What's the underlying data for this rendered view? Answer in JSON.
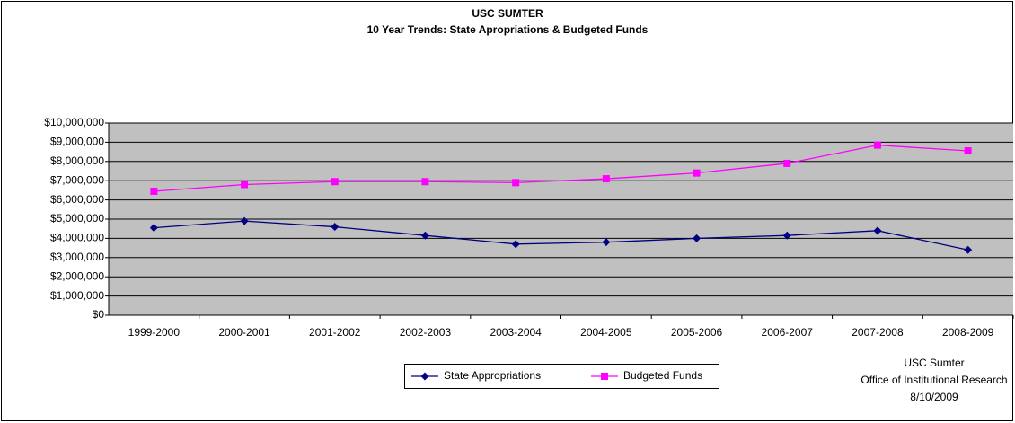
{
  "chart_data": {
    "type": "line",
    "title": "USC SUMTER",
    "subtitle": "10 Year Trends: State Apropriations & Budgeted Funds",
    "categories": [
      "1999-2000",
      "2000-2001",
      "2001-2002",
      "2002-2003",
      "2003-2004",
      "2004-2005",
      "2005-2006",
      "2006-2007",
      "2007-2008",
      "2008-2009"
    ],
    "series": [
      {
        "name": "State Appropriations",
        "color": "#000080",
        "marker": "diamond",
        "values": [
          4550000,
          4900000,
          4600000,
          4150000,
          3700000,
          3800000,
          4000000,
          4150000,
          4400000,
          3400000
        ]
      },
      {
        "name": "Budgeted Funds",
        "color": "#ff00ff",
        "marker": "square",
        "values": [
          6450000,
          6800000,
          6950000,
          6950000,
          6900000,
          7100000,
          7400000,
          7900000,
          8850000,
          8550000
        ]
      }
    ],
    "ylim": [
      0,
      10000000
    ],
    "yticks": [
      {
        "value": 0,
        "label": "$0"
      },
      {
        "value": 1000000,
        "label": "$1,000,000"
      },
      {
        "value": 2000000,
        "label": "$2,000,000"
      },
      {
        "value": 3000000,
        "label": "$3,000,000"
      },
      {
        "value": 4000000,
        "label": "$4,000,000"
      },
      {
        "value": 5000000,
        "label": "$5,000,000"
      },
      {
        "value": 6000000,
        "label": "$6,000,000"
      },
      {
        "value": 7000000,
        "label": "$7,000,000"
      },
      {
        "value": 8000000,
        "label": "$8,000,000"
      },
      {
        "value": 9000000,
        "label": "$9,000,000"
      },
      {
        "value": 10000000,
        "label": "$10,000,000"
      }
    ],
    "grid": true,
    "legend": "bottom",
    "annotations": [
      "USC Sumter",
      "Office of Institutional Research",
      "8/10/2009"
    ]
  }
}
